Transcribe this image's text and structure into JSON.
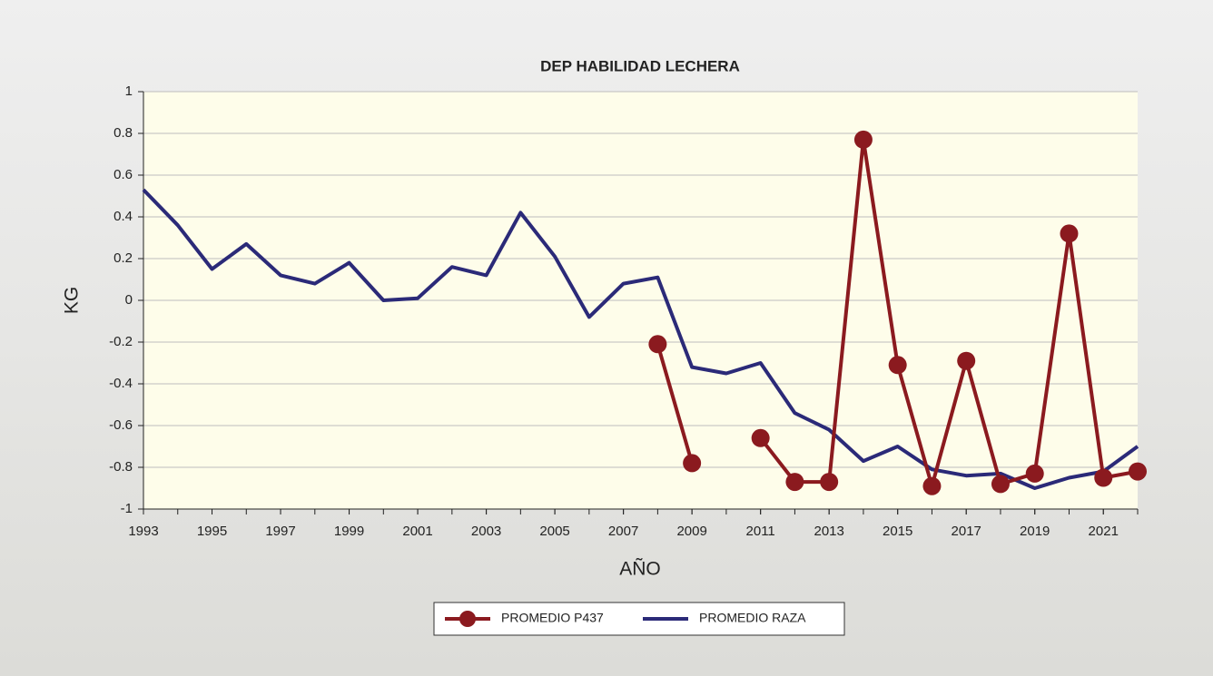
{
  "chart_data": {
    "type": "line",
    "title": "DEP HABILIDAD LECHERA",
    "x_label": "AÑO",
    "y_label": "KG",
    "x": [
      1993,
      1994,
      1995,
      1996,
      1997,
      1998,
      1999,
      2000,
      2001,
      2002,
      2003,
      2004,
      2005,
      2006,
      2007,
      2008,
      2009,
      2010,
      2011,
      2012,
      2013,
      2014,
      2015,
      2016,
      2017,
      2018,
      2019,
      2020,
      2021,
      2022
    ],
    "series": [
      {
        "name": "PROMEDIO P437",
        "color": "#8b1a1f",
        "markers": true,
        "values": [
          null,
          null,
          null,
          null,
          null,
          null,
          null,
          null,
          null,
          null,
          null,
          null,
          null,
          null,
          null,
          -0.21,
          -0.78,
          null,
          -0.66,
          -0.87,
          -0.87,
          0.77,
          -0.31,
          -0.89,
          -0.29,
          -0.88,
          -0.83,
          0.32,
          -0.85,
          -0.82
        ]
      },
      {
        "name": "PROMEDIO RAZA",
        "color": "#2b2a78",
        "markers": false,
        "values": [
          0.53,
          0.36,
          0.15,
          0.27,
          0.12,
          0.08,
          0.18,
          0.0,
          0.01,
          0.16,
          0.12,
          0.42,
          0.21,
          -0.08,
          0.08,
          0.11,
          -0.32,
          -0.35,
          -0.3,
          -0.54,
          -0.62,
          -0.77,
          -0.7,
          -0.81,
          -0.84,
          -0.83,
          -0.9,
          -0.85,
          -0.82,
          -0.7
        ]
      }
    ],
    "xlim": [
      1993,
      2022
    ],
    "xticks": [
      1993,
      1995,
      1997,
      1999,
      2001,
      2003,
      2005,
      2007,
      2009,
      2011,
      2013,
      2015,
      2017,
      2019,
      2021
    ],
    "ylim": [
      -1,
      1
    ],
    "yticks": [
      -1,
      -0.8,
      -0.6,
      -0.4,
      -0.2,
      0,
      0.2,
      0.4,
      0.6,
      0.8,
      1
    ],
    "grid": true,
    "legend": "bottom"
  }
}
